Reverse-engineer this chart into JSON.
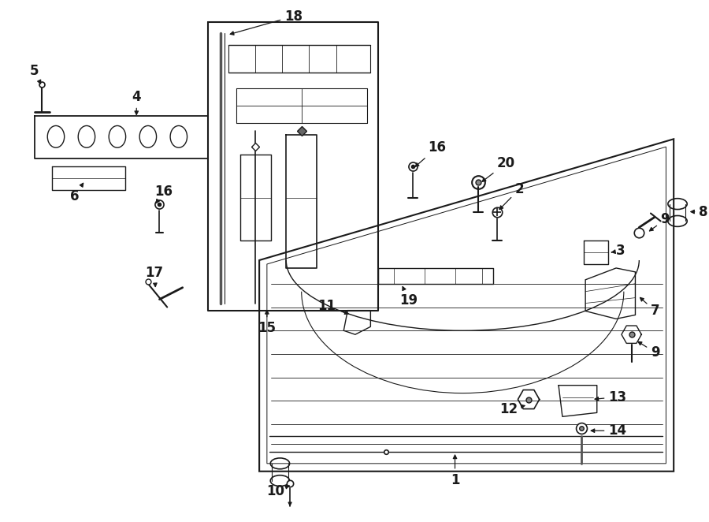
{
  "bg_color": "#ffffff",
  "line_color": "#1a1a1a",
  "lw_main": 1.3,
  "lw_thin": 0.7,
  "lw_thick": 2.0
}
